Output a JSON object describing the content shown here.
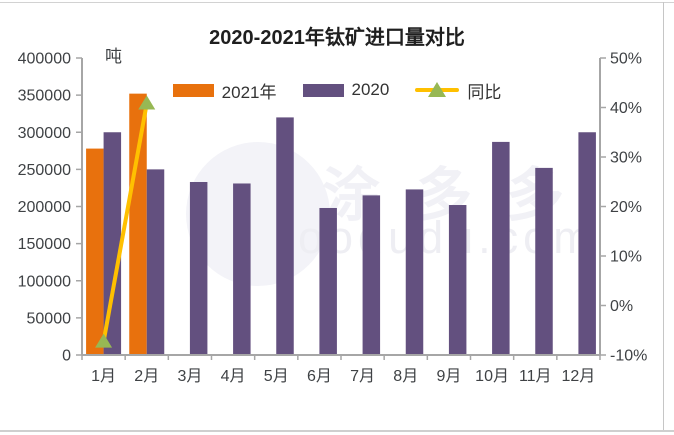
{
  "chart_data": {
    "type": "bar",
    "title": "2020-2021年钛矿进口量对比",
    "unit_label": "吨",
    "categories": [
      "1月",
      "2月",
      "3月",
      "4月",
      "5月",
      "6月",
      "7月",
      "8月",
      "9月",
      "10月",
      "11月",
      "12月"
    ],
    "series": [
      {
        "name": "2021年",
        "type": "bar",
        "axis": "left",
        "color": "#e8710d",
        "values": [
          278000,
          352000,
          null,
          null,
          null,
          null,
          null,
          null,
          null,
          null,
          null,
          null
        ]
      },
      {
        "name": "2020",
        "type": "bar",
        "axis": "left",
        "color": "#63507f",
        "values": [
          300000,
          250000,
          233000,
          231000,
          320000,
          198000,
          215000,
          223000,
          202000,
          287000,
          252000,
          300000
        ]
      },
      {
        "name": "同比",
        "type": "line",
        "axis": "right",
        "color": "#ffc000",
        "marker": "triangle",
        "marker_color": "#97b854",
        "values": [
          -7.3,
          40.8,
          null,
          null,
          null,
          null,
          null,
          null,
          null,
          null,
          null,
          null
        ]
      }
    ],
    "left_axis": {
      "min": 0,
      "max": 400000,
      "step": 50000,
      "tick_labels": [
        "0",
        "50000",
        "100000",
        "150000",
        "200000",
        "250000",
        "300000",
        "350000",
        "400000"
      ]
    },
    "right_axis": {
      "min": -10,
      "max": 50,
      "step": 10,
      "tick_labels": [
        "-10%",
        "0%",
        "10%",
        "20%",
        "30%",
        "40%",
        "50%"
      ]
    },
    "legend_position": "top",
    "grid": false,
    "axis_color": "#a6a6a6",
    "label_color": "#3f4245"
  },
  "watermark": {
    "logo_text": "涂多多",
    "domain_text": "oodudu.com"
  }
}
